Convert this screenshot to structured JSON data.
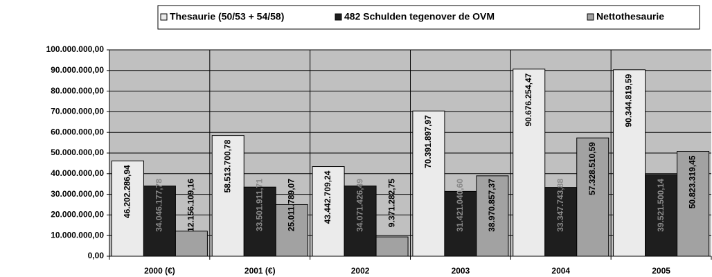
{
  "chart_data": {
    "type": "bar",
    "categories": [
      "2000 (€)",
      "2001 (€)",
      "2002",
      "2003",
      "2004",
      "2005"
    ],
    "series": [
      {
        "name": "Thesaurie (50/53 + 54/58)",
        "color": "#ebebeb",
        "values": [
          46202286.94,
          58513700.78,
          43442709.24,
          70391897.97,
          90676254.47,
          90344819.59
        ],
        "value_labels": [
          "46.202.286,94",
          "58.513.700,78",
          "43.442.709,24",
          "70.391.897,97",
          "90.676.254,47",
          "90.344.819,59"
        ]
      },
      {
        "name": "482 Schulden tegenover de OVM",
        "color": "#1e1e1e",
        "values": [
          34046177.78,
          33501911.71,
          34071426.49,
          31421040.6,
          33347743.88,
          39521500.14
        ],
        "value_labels": [
          "34.046.177,78",
          "33.501.911,71",
          "34.071.426,49",
          "31.421.040,60",
          "33.347.743,88",
          "39.521.500,14"
        ]
      },
      {
        "name": "Nettothesaurie",
        "color": "#a2a2a2",
        "values": [
          12156109.16,
          25011789.07,
          9371282.75,
          38970857.37,
          57328510.59,
          50823319.45
        ],
        "value_labels": [
          "12.156.109,16",
          "25.011.789,07",
          "9.371.282,75",
          "38.970.857,37",
          "57.328.510,59",
          "50.823.319,45"
        ]
      }
    ],
    "ylim": [
      0,
      100000000
    ],
    "yticks": [
      {
        "value": 0,
        "label": "0,00"
      },
      {
        "value": 10000000,
        "label": "10.000.000,00"
      },
      {
        "value": 20000000,
        "label": "20.000.000,00"
      },
      {
        "value": 30000000,
        "label": "30.000.000,00"
      },
      {
        "value": 40000000,
        "label": "40.000.000,00"
      },
      {
        "value": 50000000,
        "label": "50.000.000,00"
      },
      {
        "value": 60000000,
        "label": "60.000.000,00"
      },
      {
        "value": 70000000,
        "label": "70.000.000,00"
      },
      {
        "value": 80000000,
        "label": "80.000.000,00"
      },
      {
        "value": 90000000,
        "label": "90.000.000,00"
      },
      {
        "value": 100000000,
        "label": "100.000.000,00"
      }
    ],
    "grid": true,
    "legend": "top"
  }
}
